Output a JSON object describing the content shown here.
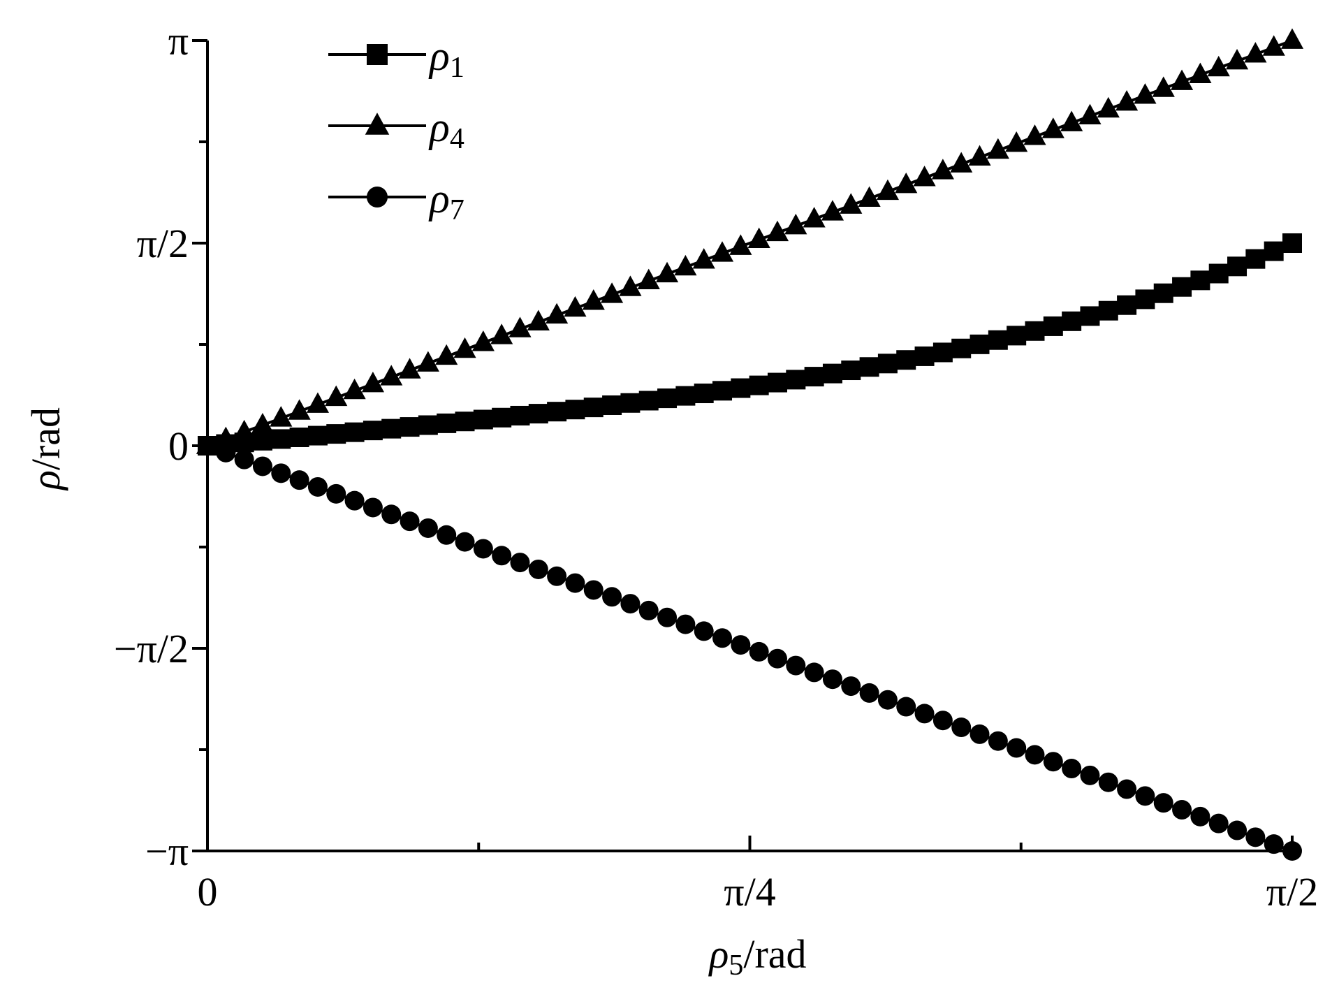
{
  "chart_data": {
    "type": "line",
    "xlabel_symbol": "ρ",
    "xlabel_sub": "5",
    "xlabel_unit": "/rad",
    "ylabel_symbol": "ρ",
    "ylabel_unit": "/rad",
    "xlim": [
      0,
      1.5708
    ],
    "ylim": [
      -3.1416,
      3.1416
    ],
    "x_ticks": [
      {
        "value": 0,
        "label": "0"
      },
      {
        "value": 0.7854,
        "label": "π/4"
      },
      {
        "value": 1.5708,
        "label": "π/2"
      }
    ],
    "x_minor_ticks": [
      0.3927,
      1.1781
    ],
    "y_ticks": [
      {
        "value": 3.1416,
        "label": "π"
      },
      {
        "value": 1.5708,
        "label": "π/2"
      },
      {
        "value": 0,
        "label": "0"
      },
      {
        "value": -1.5708,
        "label": "−π/2"
      },
      {
        "value": -3.1416,
        "label": "−π"
      }
    ],
    "y_minor_ticks": [
      2.3562,
      0.7854,
      -0.7854,
      -2.3562
    ],
    "grid": false,
    "legend_position": "top-left",
    "n_points": 60,
    "series": [
      {
        "symbol": "ρ",
        "sub": "1",
        "marker": "square",
        "model": "tan_half",
        "x_end": 1.5708,
        "color": "#000000"
      },
      {
        "symbol": "ρ",
        "sub": "4",
        "marker": "triangle",
        "model": "linear_scaled",
        "x_end": 1.5708,
        "color": "#000000"
      },
      {
        "symbol": "ρ",
        "sub": "7",
        "marker": "circle",
        "model": "neg_tan_plus",
        "x_end": 1.5708,
        "color": "#000000"
      }
    ]
  }
}
